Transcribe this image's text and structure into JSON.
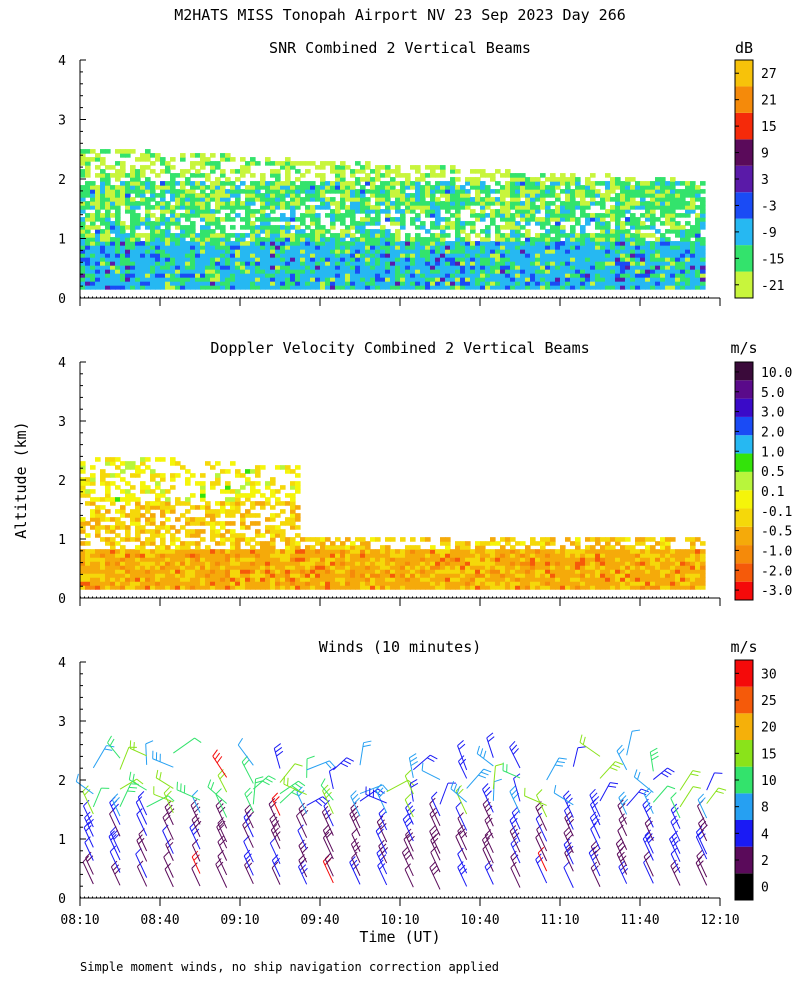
{
  "page_title": "M2HATS MISS Tonopah Airport NV  23 Sep 2023 Day 266",
  "footnote": "Simple moment winds, no ship navigation correction applied",
  "shared_axes": {
    "y_label": "Altitude (km)",
    "x_label": "Time (UT)",
    "x_ticks": [
      "08:10",
      "08:40",
      "09:10",
      "09:40",
      "10:10",
      "10:40",
      "11:10",
      "11:40",
      "12:10"
    ],
    "y_ticks": [
      "0",
      "1",
      "2",
      "3",
      "4"
    ]
  },
  "chart_data": [
    {
      "type": "heatmap",
      "title": "SNR Combined 2 Vertical Beams",
      "units": "dB",
      "xlabel": "",
      "ylabel": "Altitude (km)",
      "xlim": [
        "08:10",
        "12:10"
      ],
      "ylim": [
        0,
        4
      ],
      "colorbar_ticks": [
        "-21",
        "-15",
        "-9",
        "-3",
        "3",
        "9",
        "15",
        "21",
        "27"
      ],
      "colorbar_colors": [
        "#c8f53c",
        "#33e36c",
        "#26b8f2",
        "#1a4bf5",
        "#5a1aa8",
        "#5a0a5a",
        "#f52a0a",
        "#f58a0a",
        "#f7c20a"
      ],
      "data_x_range": [
        "08:10",
        "12:00"
      ],
      "data_y_range_km": [
        0.15,
        2.5
      ],
      "approx_layers": [
        {
          "altitude_km": [
            0.15,
            0.9
          ],
          "level_db": "-9 to -3"
        },
        {
          "altitude_km": [
            0.9,
            1.9
          ],
          "level_db": "-15 to -9"
        },
        {
          "altitude_km": [
            1.9,
            2.5
          ],
          "level_db": "-21 to -15"
        }
      ]
    },
    {
      "type": "heatmap",
      "title": "Doppler Velocity Combined 2 Vertical Beams",
      "units": "m/s",
      "xlabel": "",
      "ylabel": "Altitude (km)",
      "xlim": [
        "08:10",
        "12:10"
      ],
      "ylim": [
        0,
        4
      ],
      "colorbar_ticks": [
        "-3.0",
        "-2.0",
        "-1.0",
        "-0.5",
        "-0.1",
        "0.1",
        "0.5",
        "1.0",
        "2.0",
        "3.0",
        "5.0",
        "10.0"
      ],
      "colorbar_colors": [
        "#f50a0a",
        "#f55a0a",
        "#f58a0a",
        "#f5aa0a",
        "#f5d80a",
        "#f5f50a",
        "#b8f53c",
        "#33e30a",
        "#26b8f2",
        "#1a4bf5",
        "#3a0ac8",
        "#5a0a8a",
        "#3a0a3a"
      ],
      "data_x_range": [
        "08:10",
        "12:00"
      ],
      "data_y_range_km": [
        0.15,
        2.4
      ],
      "approx_layers": [
        {
          "altitude_km": [
            0.15,
            0.8
          ],
          "velocity_ms": "-1.0 to -0.1"
        },
        {
          "altitude_km": [
            0.8,
            1.6
          ],
          "velocity_ms": "-0.5 to -0.1"
        },
        {
          "altitude_km": [
            1.6,
            2.4
          ],
          "velocity_ms": "-0.1 to 0.5"
        }
      ]
    },
    {
      "type": "scatter",
      "title": "Winds (10 minutes)",
      "units": "m/s",
      "xlabel": "Time (UT)",
      "ylabel": "Altitude (km)",
      "xlim": [
        "08:10",
        "12:10"
      ],
      "ylim": [
        0,
        4
      ],
      "colorbar_ticks": [
        "0",
        "2",
        "4",
        "8",
        "10",
        "15",
        "20",
        "25",
        "30"
      ],
      "colorbar_colors": [
        "#000000",
        "#5a0a5a",
        "#1a1af5",
        "#26a0f2",
        "#33e36c",
        "#8ae31a",
        "#f5b00a",
        "#f55a0a",
        "#f50a0a"
      ],
      "barb_times": [
        "08:15",
        "08:25",
        "08:35",
        "08:45",
        "08:55",
        "09:05",
        "09:15",
        "09:25",
        "09:35",
        "09:45",
        "09:55",
        "10:05",
        "10:15",
        "10:25",
        "10:35",
        "10:45",
        "10:55",
        "11:05",
        "11:15",
        "11:25",
        "11:35",
        "11:45",
        "11:55",
        "12:05"
      ],
      "barb_altitudes_km": [
        0.2,
        0.4,
        0.6,
        0.8,
        1.0,
        1.2,
        1.4,
        1.6,
        1.8,
        2.0,
        2.2,
        2.4
      ],
      "predominant_speed_ms": "2 to 8"
    }
  ]
}
